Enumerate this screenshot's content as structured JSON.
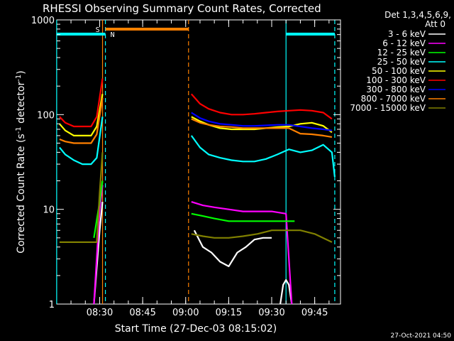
{
  "chart_data": {
    "type": "line",
    "title": "RHESSI Observing Summary Count Rates, Corrected",
    "xlabel": "Start Time (27-Dec-03 08:15:02)",
    "ylabel": "Corrected Count Rate (s⁻¹ detector⁻¹)",
    "ylabel_main": "Corrected Count Rate (s",
    "ylabel_sup1": "-1",
    "ylabel_mid": " detector",
    "ylabel_sup2": "-1",
    "ylabel_end": ")",
    "timestamp": "27-Oct-2021 04:50",
    "y_scale": "log",
    "xlim": [
      "08:15:02",
      "09:54"
    ],
    "ylim": [
      1,
      1000
    ],
    "x_ticks": [
      "08:30",
      "08:45",
      "09:00",
      "09:15",
      "09:30",
      "09:45"
    ],
    "y_ticks": [
      "1",
      "10",
      "100",
      "1000"
    ],
    "legend_header": [
      "Det 1,3,4,5,6,9,",
      "Att 0"
    ],
    "legend_position": "right",
    "flags": [
      {
        "label": "S",
        "color": "#ff8000",
        "start": "08:32",
        "end": "09:01"
      },
      {
        "label": "N",
        "color": "#00ffff",
        "start": "08:15",
        "end": "08:32"
      },
      {
        "label": "",
        "color": "#00ffff",
        "start": "09:35",
        "end": "09:52"
      }
    ],
    "vlines": [
      {
        "time": "08:15",
        "color": "#00ffff",
        "style": "solid"
      },
      {
        "time": "08:31",
        "color": "#ff8000",
        "style": "solid"
      },
      {
        "time": "08:32",
        "color": "#00ffff",
        "style": "dashed"
      },
      {
        "time": "09:01",
        "color": "#ff8000",
        "style": "dashed"
      },
      {
        "time": "09:35",
        "color": "#00ffff",
        "style": "solid"
      },
      {
        "time": "09:52",
        "color": "#00ffff",
        "style": "dashed"
      }
    ],
    "series": [
      {
        "name": "3 - 6 keV",
        "color": "#ffffff",
        "segments": [
          {
            "x": [
              "08:28",
              "08:30",
              "08:31"
            ],
            "y": [
              1,
              6,
              12
            ]
          },
          {
            "x": [
              "09:03",
              "09:06",
              "09:09",
              "09:12",
              "09:15",
              "09:18",
              "09:21",
              "09:24",
              "09:27",
              "09:30"
            ],
            "y": [
              6,
              4,
              3.5,
              2.8,
              2.5,
              3.5,
              4,
              4.8,
              5,
              5
            ]
          },
          {
            "x": [
              "09:33",
              "09:34",
              "09:35",
              "09:36",
              "09:37"
            ],
            "y": [
              1,
              1.6,
              1.8,
              1.6,
              1
            ]
          }
        ]
      },
      {
        "name": "6 - 12 keV",
        "color": "#ff00ff",
        "segments": [
          {
            "x": [
              "08:28",
              "08:30",
              "08:31"
            ],
            "y": [
              1,
              10,
              18
            ]
          },
          {
            "x": [
              "09:02",
              "09:06",
              "09:10",
              "09:15",
              "09:20",
              "09:25",
              "09:30",
              "09:35",
              "09:37"
            ],
            "y": [
              12,
              11,
              10.5,
              10,
              9.5,
              9.5,
              9.5,
              9,
              1
            ]
          }
        ]
      },
      {
        "name": "12 - 25 keV",
        "color": "#00ff00",
        "segments": [
          {
            "x": [
              "08:28",
              "08:30",
              "08:31"
            ],
            "y": [
              5,
              12,
              20
            ]
          },
          {
            "x": [
              "09:02",
              "09:06",
              "09:10",
              "09:15",
              "09:20",
              "09:25",
              "09:30",
              "09:35",
              "09:38"
            ],
            "y": [
              9,
              8.5,
              8,
              7.5,
              7.5,
              7.5,
              7.5,
              7.5,
              7.5
            ]
          }
        ]
      },
      {
        "name": "25 - 50 keV",
        "color": "#00ffff",
        "segments": [
          {
            "x": [
              "08:16",
              "08:18",
              "08:21",
              "08:24",
              "08:27",
              "08:29",
              "08:31"
            ],
            "y": [
              45,
              38,
              33,
              30,
              30,
              35,
              95
            ]
          },
          {
            "x": [
              "09:02",
              "09:05",
              "09:08",
              "09:12",
              "09:16",
              "09:20",
              "09:24",
              "09:28",
              "09:32",
              "09:36",
              "09:40",
              "09:44",
              "09:48",
              "09:51",
              "09:52"
            ],
            "y": [
              60,
              45,
              38,
              35,
              33,
              32,
              32,
              34,
              38,
              43,
              40,
              42,
              48,
              40,
              22
            ]
          }
        ]
      },
      {
        "name": "50 - 100 keV",
        "color": "#ffff00",
        "segments": [
          {
            "x": [
              "08:16",
              "08:18",
              "08:21",
              "08:24",
              "08:27",
              "08:29",
              "08:31"
            ],
            "y": [
              80,
              68,
              60,
              60,
              60,
              75,
              165
            ]
          },
          {
            "x": [
              "09:02",
              "09:05",
              "09:08",
              "09:12",
              "09:16",
              "09:20",
              "09:24",
              "09:28",
              "09:32",
              "09:36",
              "09:40",
              "09:44",
              "09:48",
              "09:51"
            ],
            "y": [
              95,
              85,
              78,
              72,
              70,
              70,
              70,
              72,
              74,
              75,
              80,
              82,
              76,
              65
            ]
          }
        ]
      },
      {
        "name": "100 - 300 keV",
        "color": "#ff0000",
        "segments": [
          {
            "x": [
              "08:16",
              "08:18",
              "08:21",
              "08:24",
              "08:27",
              "08:29",
              "08:31"
            ],
            "y": [
              95,
              82,
              75,
              75,
              75,
              95,
              240
            ]
          },
          {
            "x": [
              "09:02",
              "09:05",
              "09:08",
              "09:12",
              "09:16",
              "09:20",
              "09:24",
              "09:28",
              "09:32",
              "09:36",
              "09:40",
              "09:44",
              "09:48",
              "09:51"
            ],
            "y": [
              165,
              130,
              115,
              105,
              100,
              100,
              102,
              105,
              108,
              110,
              112,
              110,
              105,
              90
            ]
          }
        ]
      },
      {
        "name": "300 - 800 keV",
        "color": "#0000ff",
        "segments": [
          {
            "x": [
              "09:02",
              "09:05",
              "09:08",
              "09:12",
              "09:16",
              "09:20",
              "09:24",
              "09:28",
              "09:32",
              "09:36",
              "09:40",
              "09:44",
              "09:48",
              "09:51"
            ],
            "y": [
              105,
              92,
              85,
              80,
              78,
              76,
              76,
              77,
              78,
              78,
              75,
              72,
              70,
              68
            ]
          }
        ]
      },
      {
        "name": "800 - 7000 keV",
        "color": "#ff8000",
        "segments": [
          {
            "x": [
              "08:16",
              "08:18",
              "08:21",
              "08:24",
              "08:27",
              "08:29",
              "08:31"
            ],
            "y": [
              55,
              52,
              50,
              50,
              50,
              62,
              150
            ]
          },
          {
            "x": [
              "09:02",
              "09:05",
              "09:08",
              "09:12",
              "09:16",
              "09:20",
              "09:24",
              "09:28",
              "09:32",
              "09:36",
              "09:40",
              "09:44",
              "09:48",
              "09:51"
            ],
            "y": [
              90,
              82,
              78,
              75,
              74,
              72,
              72,
              72,
              72,
              72,
              63,
              62,
              60,
              58
            ]
          }
        ]
      },
      {
        "name": "7000 - 15000 keV",
        "color": "#808000",
        "segments": [
          {
            "x": [
              "08:16",
              "08:18",
              "08:21",
              "08:24",
              "08:27",
              "08:29",
              "08:30",
              "08:31"
            ],
            "y": [
              4.5,
              4.5,
              4.5,
              4.5,
              4.5,
              4.5,
              15,
              40
            ]
          },
          {
            "x": [
              "09:02",
              "09:06",
              "09:10",
              "09:15",
              "09:20",
              "09:25",
              "09:30",
              "09:35",
              "09:40",
              "09:45",
              "09:51"
            ],
            "y": [
              5.5,
              5.2,
              5,
              5,
              5.2,
              5.5,
              6,
              6,
              6,
              5.5,
              4.5
            ]
          }
        ]
      }
    ]
  }
}
